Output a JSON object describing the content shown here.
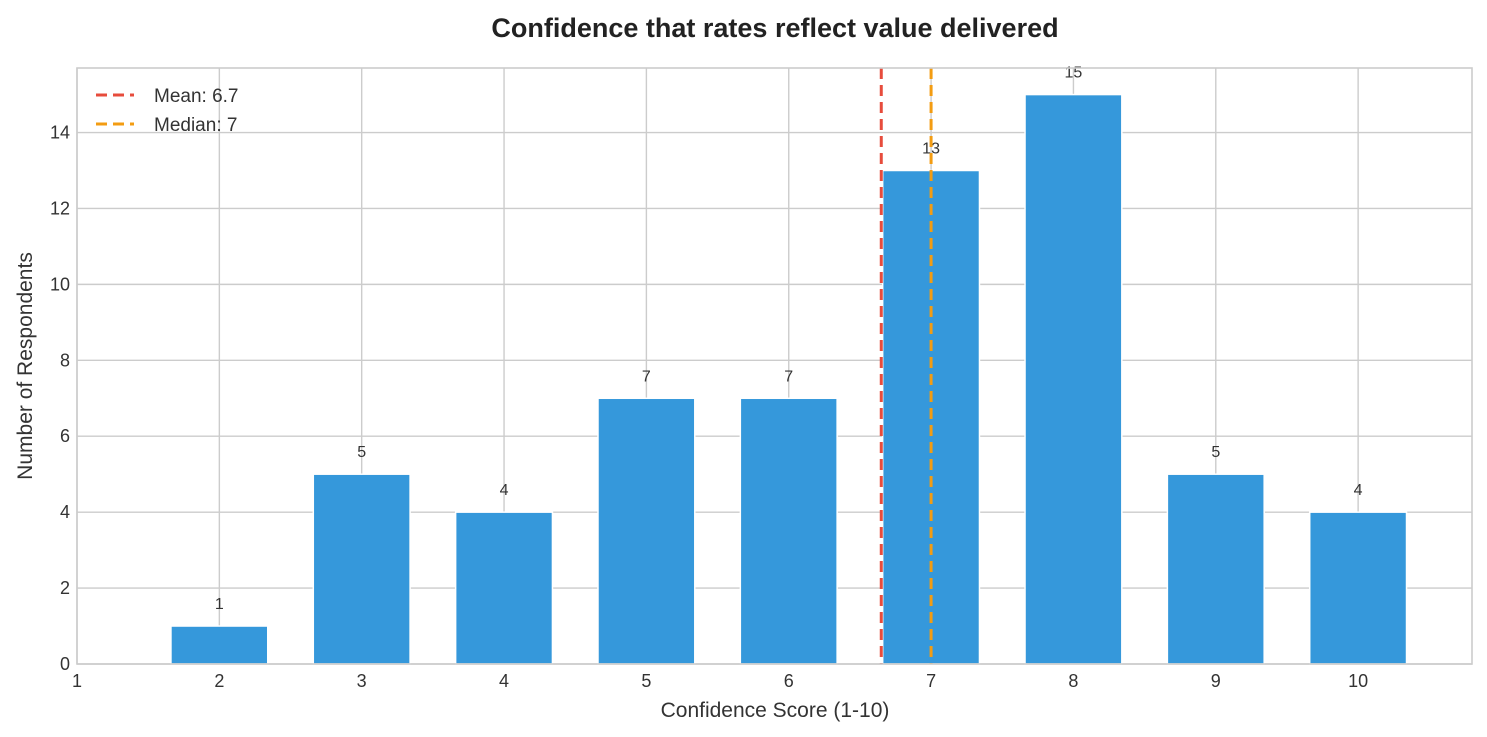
{
  "chart_data": {
    "type": "bar",
    "title": "Confidence that rates reflect value delivered",
    "xlabel": "Confidence Score (1-10)",
    "ylabel": "Number of Respondents",
    "categories": [
      2,
      3,
      4,
      5,
      6,
      7,
      8,
      9,
      10
    ],
    "values": [
      1,
      5,
      4,
      7,
      7,
      13,
      15,
      5,
      4
    ],
    "xlim": [
      1,
      10.8
    ],
    "ylim": [
      0,
      15.7
    ],
    "xticks": [
      1,
      2,
      3,
      4,
      5,
      6,
      7,
      8,
      9,
      10
    ],
    "yticks": [
      0,
      2,
      4,
      6,
      8,
      10,
      12,
      14
    ],
    "bar_color": "#3598db",
    "grid": true,
    "legend_position": "top-left",
    "reference_lines": [
      {
        "label": "Mean: 6.7",
        "x": 6.65,
        "color": "#e74c3c",
        "style": "dashed"
      },
      {
        "label": "Median: 7",
        "x": 7,
        "color": "#f39c12",
        "style": "dashed"
      }
    ]
  }
}
